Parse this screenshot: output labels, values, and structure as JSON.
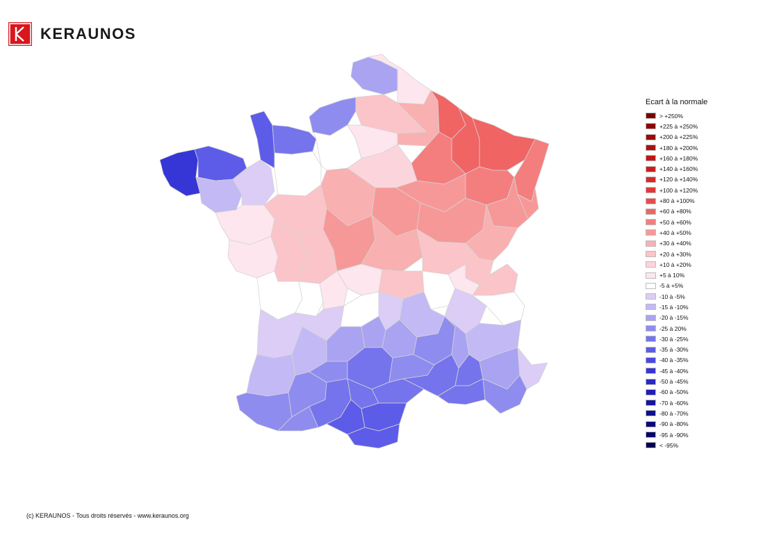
{
  "brand": {
    "name": "KERAUNOS",
    "logo_letter": "K",
    "color": "#d9161c"
  },
  "legend": {
    "title": "Ecart à la normale",
    "items": [
      {
        "label": "> +250%",
        "color": "#7a0000"
      },
      {
        "label": "+225 à +250%",
        "color": "#8c0505"
      },
      {
        "label": "+200 à +225%",
        "color": "#9e0a0a"
      },
      {
        "label": "+180 à +200%",
        "color": "#ae1010"
      },
      {
        "label": "+160 à +180%",
        "color": "#be1616"
      },
      {
        "label": "+140 à +160%",
        "color": "#cc1e1e"
      },
      {
        "label": "+120 à +140%",
        "color": "#da2828"
      },
      {
        "label": "+100 à +120%",
        "color": "#e43838"
      },
      {
        "label": "+80 à +100%",
        "color": "#ec4a4a"
      },
      {
        "label": "+60 à +80%",
        "color": "#f06464"
      },
      {
        "label": "+50 à +60%",
        "color": "#f47e7e"
      },
      {
        "label": "+40 à +50%",
        "color": "#f79898"
      },
      {
        "label": "+30 à +40%",
        "color": "#f9b0b0"
      },
      {
        "label": "+20 à +30%",
        "color": "#fbc4c8"
      },
      {
        "label": "+10 à +20%",
        "color": "#fcd5dc"
      },
      {
        "label": "+5 à 10%",
        "color": "#fde6ee"
      },
      {
        "label": "-5 à +5%",
        "color": "#ffffff"
      },
      {
        "label": "-10 à -5%",
        "color": "#dccdf7"
      },
      {
        "label": "-15 à -10%",
        "color": "#c3b9f5"
      },
      {
        "label": "-20 à -15%",
        "color": "#a9a3f2"
      },
      {
        "label": "-25 à 20%",
        "color": "#8f8cef"
      },
      {
        "label": "-30 à -25%",
        "color": "#7574ec"
      },
      {
        "label": "-35 à -30%",
        "color": "#5d5ce8"
      },
      {
        "label": "-40 à -35%",
        "color": "#4848e2"
      },
      {
        "label": "-45 à -40%",
        "color": "#3636d6"
      },
      {
        "label": "-50 à -45%",
        "color": "#2828c6"
      },
      {
        "label": "-60 à -50%",
        "color": "#1e1eb4"
      },
      {
        "label": "-70 à -60%",
        "color": "#1616a0"
      },
      {
        "label": "-80 à -70%",
        "color": "#10108c"
      },
      {
        "label": "-90 à -80%",
        "color": "#0b0b78"
      },
      {
        "label": "-95 à -90%",
        "color": "#060666"
      },
      {
        "label": "< -95%",
        "color": "#020250"
      }
    ]
  },
  "map": {
    "regions": [
      {
        "id": "pas-de-calais",
        "color": "#a9a3f2"
      },
      {
        "id": "nord",
        "color": "#fde6ee"
      },
      {
        "id": "somme",
        "color": "#fbc4c8"
      },
      {
        "id": "aisne-north",
        "color": "#f9b0b0"
      },
      {
        "id": "ardennes",
        "color": "#f06464"
      },
      {
        "id": "meuse",
        "color": "#f06464"
      },
      {
        "id": "moselle",
        "color": "#f06464"
      },
      {
        "id": "bas-rhin",
        "color": "#f47e7e"
      },
      {
        "id": "marne",
        "color": "#f47e7e"
      },
      {
        "id": "seine-maritime",
        "color": "#8f8cef"
      },
      {
        "id": "manche",
        "color": "#5d5ce8"
      },
      {
        "id": "calvados",
        "color": "#7574ec"
      },
      {
        "id": "finistere",
        "color": "#3636d6"
      },
      {
        "id": "cotes-armor",
        "color": "#5d5ce8"
      },
      {
        "id": "morbihan",
        "color": "#c3b9f5"
      },
      {
        "id": "ille-et-vilaine",
        "color": "#dccdf7"
      },
      {
        "id": "orne",
        "color": "#ffffff"
      },
      {
        "id": "eure",
        "color": "#ffffff"
      },
      {
        "id": "oise",
        "color": "#fde6ee"
      },
      {
        "id": "ile-de-france",
        "color": "#fcd5dc"
      },
      {
        "id": "aube",
        "color": "#f79898"
      },
      {
        "id": "haute-marne",
        "color": "#f47e7e"
      },
      {
        "id": "vosges",
        "color": "#f79898"
      },
      {
        "id": "haut-rhin",
        "color": "#f79898"
      },
      {
        "id": "loire-atlantique",
        "color": "#fde6ee"
      },
      {
        "id": "sarthe",
        "color": "#fbc4c8"
      },
      {
        "id": "loiret",
        "color": "#f9b0b0"
      },
      {
        "id": "yonne",
        "color": "#f79898"
      },
      {
        "id": "cote-d-or",
        "color": "#f79898"
      },
      {
        "id": "doubs",
        "color": "#f9b0b0"
      },
      {
        "id": "vendee",
        "color": "#fde6ee"
      },
      {
        "id": "vienne",
        "color": "#fbc4c8"
      },
      {
        "id": "indre",
        "color": "#fbc4c8"
      },
      {
        "id": "cher",
        "color": "#f79898"
      },
      {
        "id": "nievre",
        "color": "#f9b0b0"
      },
      {
        "id": "saone-et-loire",
        "color": "#fbc4c8"
      },
      {
        "id": "jura",
        "color": "#fbc4c8"
      },
      {
        "id": "charente-maritime",
        "color": "#ffffff"
      },
      {
        "id": "charente",
        "color": "#ffffff"
      },
      {
        "id": "haute-vienne",
        "color": "#fde6ee"
      },
      {
        "id": "creuse",
        "color": "#fde6ee"
      },
      {
        "id": "allier",
        "color": "#fbc4c8"
      },
      {
        "id": "rhone",
        "color": "#ffffff"
      },
      {
        "id": "ain",
        "color": "#fde6ee"
      },
      {
        "id": "haute-savoie",
        "color": "#fbc4c8"
      },
      {
        "id": "gironde",
        "color": "#dccdf7"
      },
      {
        "id": "dordogne",
        "color": "#dccdf7"
      },
      {
        "id": "correze",
        "color": "#ffffff"
      },
      {
        "id": "puy-de-dome",
        "color": "#dccdf7"
      },
      {
        "id": "loire",
        "color": "#c3b9f5"
      },
      {
        "id": "isere",
        "color": "#dccdf7"
      },
      {
        "id": "savoie",
        "color": "#ffffff"
      },
      {
        "id": "landes",
        "color": "#c3b9f5"
      },
      {
        "id": "lot-et-garonne",
        "color": "#c3b9f5"
      },
      {
        "id": "lot",
        "color": "#a9a3f2"
      },
      {
        "id": "cantal",
        "color": "#a9a3f2"
      },
      {
        "id": "haute-loire",
        "color": "#a9a3f2"
      },
      {
        "id": "ardeche",
        "color": "#8f8cef"
      },
      {
        "id": "drome",
        "color": "#a9a3f2"
      },
      {
        "id": "hautes-alpes",
        "color": "#c3b9f5"
      },
      {
        "id": "pyrenees-atlantiques",
        "color": "#8f8cef"
      },
      {
        "id": "gers",
        "color": "#8f8cef"
      },
      {
        "id": "tarn-et-garonne",
        "color": "#8f8cef"
      },
      {
        "id": "aveyron",
        "color": "#7574ec"
      },
      {
        "id": "lozere",
        "color": "#8f8cef"
      },
      {
        "id": "gard",
        "color": "#7574ec"
      },
      {
        "id": "vaucluse",
        "color": "#7574ec"
      },
      {
        "id": "alpes-de-haute-provence",
        "color": "#a9a3f2"
      },
      {
        "id": "alpes-maritimes",
        "color": "#dccdf7"
      },
      {
        "id": "hautes-pyrenees",
        "color": "#8f8cef"
      },
      {
        "id": "haute-garonne",
        "color": "#7574ec"
      },
      {
        "id": "tarn",
        "color": "#7574ec"
      },
      {
        "id": "herault",
        "color": "#7574ec"
      },
      {
        "id": "bouches-du-rhone",
        "color": "#7574ec"
      },
      {
        "id": "var",
        "color": "#8f8cef"
      },
      {
        "id": "ariege",
        "color": "#5d5ce8"
      },
      {
        "id": "aude",
        "color": "#5d5ce8"
      },
      {
        "id": "pyrenees-orientales",
        "color": "#5d5ce8"
      },
      {
        "id": "haute-corse",
        "color": "#dccdf7"
      },
      {
        "id": "corse-du-sud",
        "color": "#c3b9f5"
      }
    ]
  },
  "footer": {
    "text": "(c) KERAUNOS - Tous droits réservés - www.keraunos.org"
  }
}
